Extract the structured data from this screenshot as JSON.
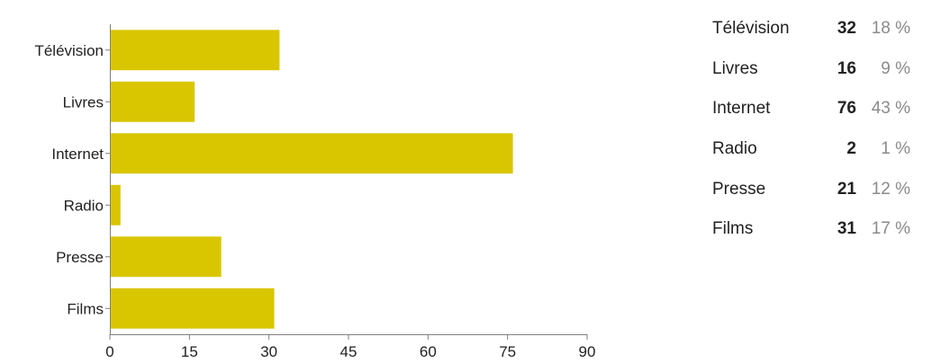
{
  "chart_data": {
    "type": "bar",
    "orientation": "horizontal",
    "categories": [
      "Télévision",
      "Livres",
      "Internet",
      "Radio",
      "Presse",
      "Films"
    ],
    "values": [
      32,
      16,
      76,
      2,
      21,
      31
    ],
    "xlim": [
      0,
      90
    ],
    "xticks": [
      "0",
      "15",
      "30",
      "45",
      "60",
      "75",
      "90"
    ],
    "bar_color": "#d9c600",
    "axis_color": "#7f7f7f",
    "grid": false,
    "legend": "none"
  },
  "summary": {
    "rows": [
      {
        "label": "Télévision",
        "count": "32",
        "percent": "18 %"
      },
      {
        "label": "Livres",
        "count": "16",
        "percent": "9 %"
      },
      {
        "label": "Internet",
        "count": "76",
        "percent": "43 %"
      },
      {
        "label": "Radio",
        "count": "2",
        "percent": "1 %"
      },
      {
        "label": "Presse",
        "count": "21",
        "percent": "12 %"
      },
      {
        "label": "Films",
        "count": "31",
        "percent": "17 %"
      }
    ]
  }
}
